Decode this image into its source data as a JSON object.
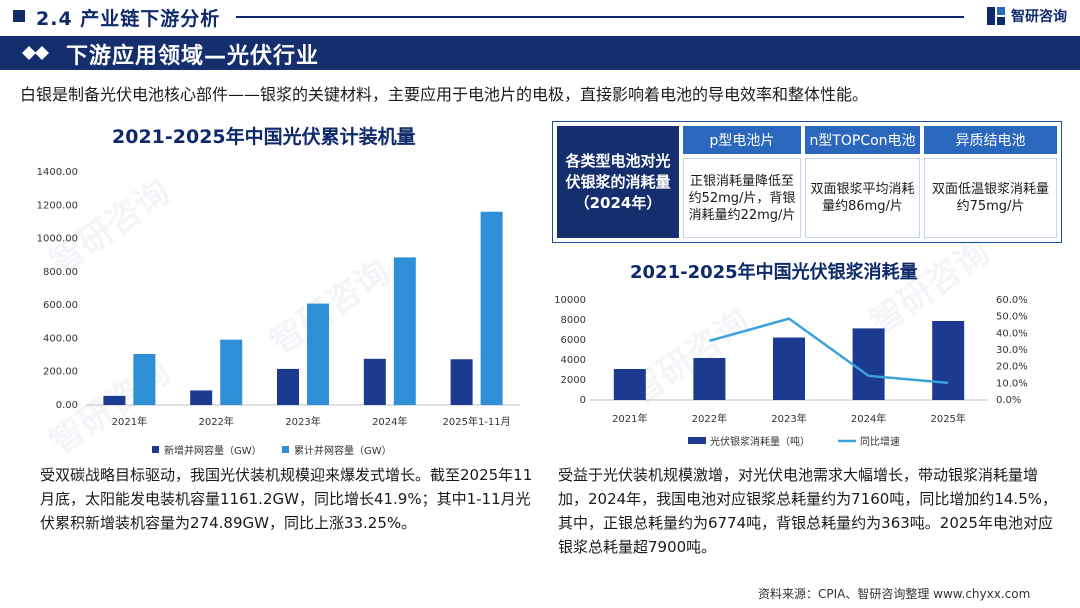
{
  "header": {
    "section": "2.4 产业链下游分析",
    "brand": "智研咨询"
  },
  "banner": {
    "title": "下游应用领域—光伏行业"
  },
  "intro": "白银是制备光伏电池核心部件——银浆的关键材料，主要应用于电池片的电极，直接影响着电池的导电效率和整体性能。",
  "table": {
    "row_header": "各类型电池对光伏银浆的消耗量（2024年）",
    "columns": [
      {
        "header": "p型电池片",
        "text": "正银消耗量降低至约52mg/片，背银消耗量约22mg/片"
      },
      {
        "header": "n型TOPCon电池",
        "text": "双面银浆平均消耗量约86mg/片"
      },
      {
        "header": "异质结电池",
        "text": "双面低温银浆消耗量约75mg/片"
      }
    ]
  },
  "paragraphs": {
    "left": "受双碳战略目标驱动，我国光伏装机规模迎来爆发式增长。截至2025年11月底，太阳能发电装机容量1161.2GW，同比增长41.9%；其中1-11月光伏累积新增装机容量为274.89GW，同比上涨33.25%。",
    "right": "受益于光伏装机规模激增，对光伏电池需求大幅增长，带动银浆消耗量增加，2024年，我国电池对应银浆总耗量约为7160吨，同比增加约14.5%，其中，正银总耗量约为6774吨，背银总耗量约为363吨。2025年电池对应银浆总耗量超7900吨。"
  },
  "source": "资料来源：CPIA、智研咨询整理  www.chyxx.com",
  "colors": {
    "navy": "#142e6e",
    "bar_dark": "#1c3a8f",
    "bar_light": "#2e8fd6",
    "line": "#3aa3d9"
  },
  "chart_data": [
    {
      "type": "bar",
      "title": "2021-2025年中国光伏累计装机量",
      "categories": [
        "2021年",
        "2022年",
        "2023年",
        "2024年",
        "2025年1-11月"
      ],
      "series": [
        {
          "name": "新增并网容量（GW）",
          "values": [
            54.9,
            87.4,
            216.9,
            277.6,
            274.89
          ],
          "color": "#1c3a8f"
        },
        {
          "name": "累计并网容量（GW）",
          "values": [
            306.6,
            392.6,
            609.5,
            887.0,
            1161.2
          ],
          "color": "#2e8fd6"
        }
      ],
      "ylim": [
        0,
        1400
      ],
      "yticks": [
        "0.00",
        "200.00",
        "400.00",
        "600.00",
        "800.00",
        "1000.00",
        "1200.00",
        "1400.00"
      ],
      "legend": "bottom",
      "grid": false
    },
    {
      "type": "bar",
      "title": "2021-2025年中国光伏银浆消耗量",
      "categories": [
        "2021年",
        "2022年",
        "2023年",
        "2024年",
        "2025年"
      ],
      "series": [
        {
          "name": "光伏银浆消耗量（吨）",
          "values": [
            3100,
            4200,
            6250,
            7160,
            7900
          ],
          "color": "#1c3a8f",
          "axis": "left"
        },
        {
          "name": "同比增速",
          "type": "line",
          "values": [
            null,
            35.5,
            48.8,
            14.5,
            10.3
          ],
          "color": "#3aa3d9",
          "axis": "right"
        }
      ],
      "ylim": [
        0,
        10000
      ],
      "yticks": [
        "0",
        "2000",
        "4000",
        "6000",
        "8000",
        "10000"
      ],
      "y2lim": [
        0,
        60
      ],
      "y2ticks": [
        "0.0%",
        "10.0%",
        "20.0%",
        "30.0%",
        "40.0%",
        "50.0%",
        "60.0%"
      ],
      "legend": "bottom",
      "grid": false
    }
  ]
}
